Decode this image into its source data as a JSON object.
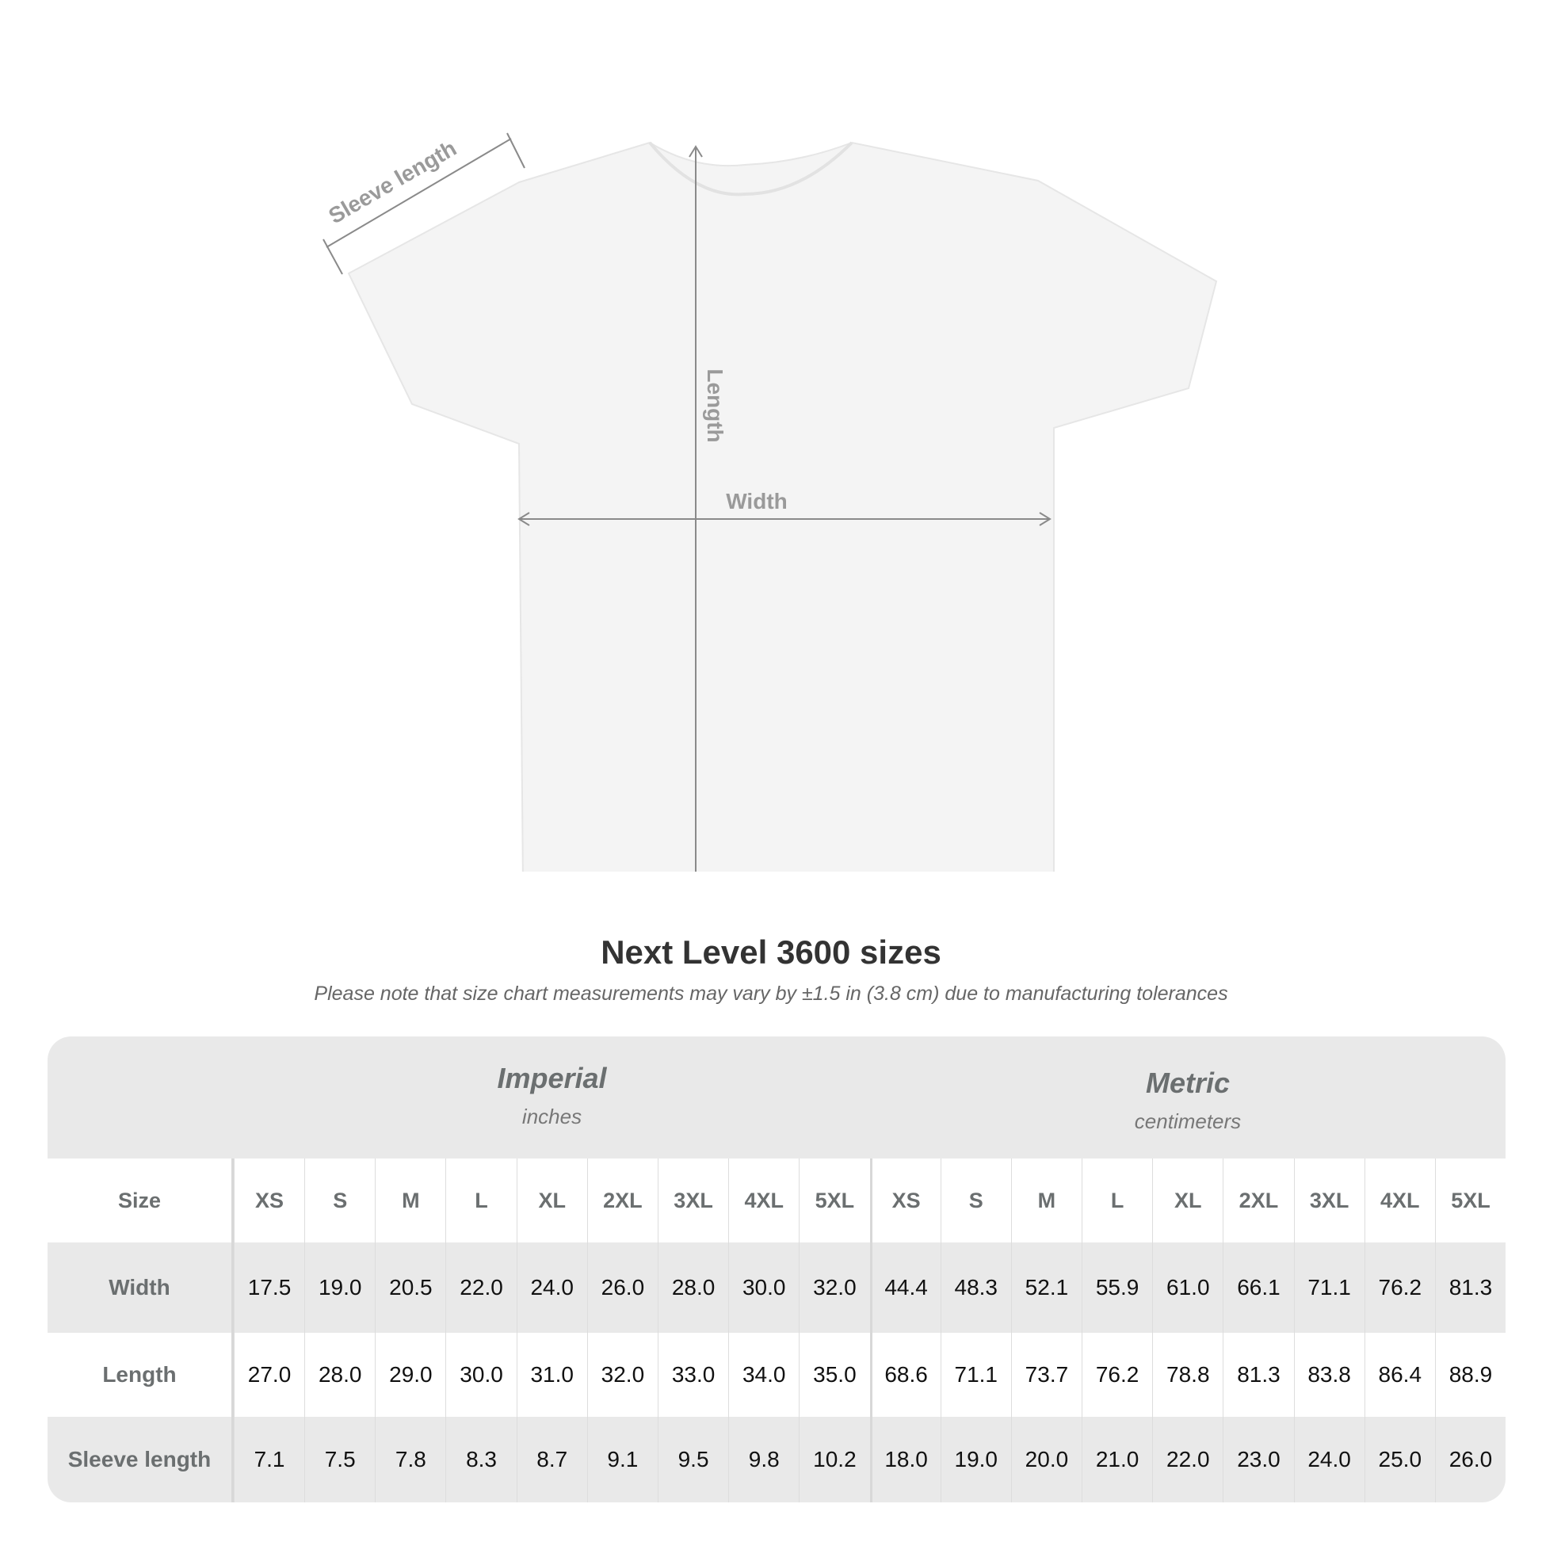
{
  "diagram": {
    "labels": {
      "sleeve": "Sleeve length",
      "length": "Length",
      "width": "Width"
    },
    "colors": {
      "shirt": "#f4f4f4",
      "arrow": "#8a8a8a",
      "label": "#9a9a9a"
    }
  },
  "title": "Next Level 3600 sizes",
  "note": "Please note that size chart measurements may vary by ±1.5 in (3.8 cm) due to manufacturing tolerances",
  "table": {
    "imperial": {
      "heading": "Imperial",
      "unit": "inches"
    },
    "metric": {
      "heading": "Metric",
      "unit": "centimeters"
    },
    "size_label": "Size",
    "sizes": [
      "XS",
      "S",
      "M",
      "L",
      "XL",
      "2XL",
      "3XL",
      "4XL",
      "5XL"
    ],
    "rows": [
      {
        "label": "Width",
        "imperial": [
          "17.5",
          "19.0",
          "20.5",
          "22.0",
          "24.0",
          "26.0",
          "28.0",
          "30.0",
          "32.0"
        ],
        "metric": [
          "44.4",
          "48.3",
          "52.1",
          "55.9",
          "61.0",
          "66.1",
          "71.1",
          "76.2",
          "81.3"
        ]
      },
      {
        "label": "Length",
        "imperial": [
          "27.0",
          "28.0",
          "29.0",
          "30.0",
          "31.0",
          "32.0",
          "33.0",
          "34.0",
          "35.0"
        ],
        "metric": [
          "68.6",
          "71.1",
          "73.7",
          "76.2",
          "78.8",
          "81.3",
          "83.8",
          "86.4",
          "88.9"
        ]
      },
      {
        "label": "Sleeve length",
        "imperial": [
          "7.1",
          "7.5",
          "7.8",
          "8.3",
          "8.7",
          "9.1",
          "9.5",
          "9.8",
          "10.2"
        ],
        "metric": [
          "18.0",
          "19.0",
          "20.0",
          "21.0",
          "22.0",
          "23.0",
          "24.0",
          "25.0",
          "26.0"
        ]
      }
    ]
  }
}
